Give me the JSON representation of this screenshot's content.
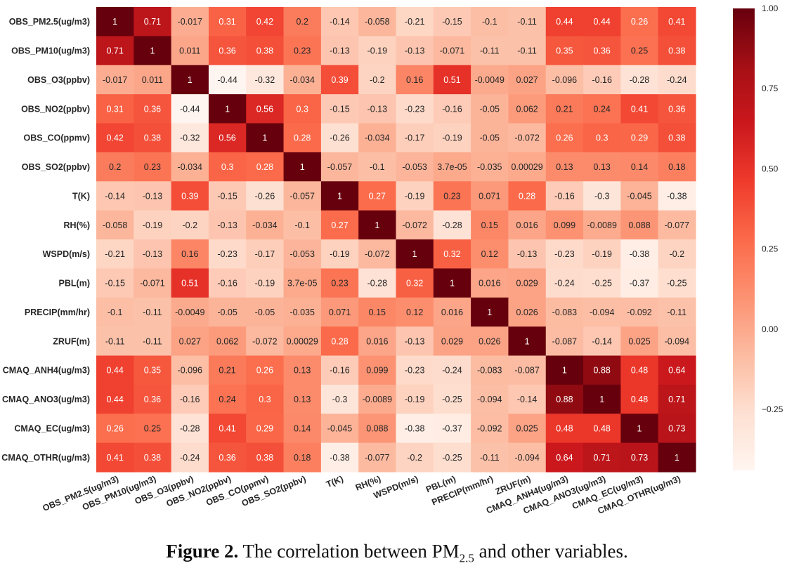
{
  "chart_data": {
    "type": "heatmap",
    "variables": [
      "OBS_PM2.5(ug/m3)",
      "OBS_PM10(ug/m3)",
      "OBS_O3(ppbv)",
      "OBS_NO2(ppbv)",
      "OBS_CO(ppmv)",
      "OBS_SO2(ppbv)",
      "T(K)",
      "RH(%)",
      "WSPD(m/s)",
      "PBL(m)",
      "PRECIP(mm/hr)",
      "ZRUF(m)",
      "CMAQ_ANH4(ug/m3)",
      "CMAQ_ANO3(ug/m3)",
      "CMAQ_EC(ug/m3)",
      "CMAQ_OTHR(ug/m3)"
    ],
    "cell_labels": [
      [
        "1",
        "0.71",
        "-0.017",
        "0.31",
        "0.42",
        "0.2",
        "-0.14",
        "-0.058",
        "-0.21",
        "-0.15",
        "-0.1",
        "-0.11",
        "0.44",
        "0.44",
        "0.26",
        "0.41"
      ],
      [
        "0.71",
        "1",
        "0.011",
        "0.36",
        "0.38",
        "0.23",
        "-0.13",
        "-0.19",
        "-0.13",
        "-0.071",
        "-0.11",
        "-0.11",
        "0.35",
        "0.36",
        "0.25",
        "0.38"
      ],
      [
        "-0.017",
        "0.011",
        "1",
        "-0.44",
        "-0.32",
        "-0.034",
        "0.39",
        "-0.2",
        "0.16",
        "0.51",
        "-0.0049",
        "0.027",
        "-0.096",
        "-0.16",
        "-0.28",
        "-0.24"
      ],
      [
        "0.31",
        "0.36",
        "-0.44",
        "1",
        "0.56",
        "0.3",
        "-0.15",
        "-0.13",
        "-0.23",
        "-0.16",
        "-0.05",
        "0.062",
        "0.21",
        "0.24",
        "0.41",
        "0.36"
      ],
      [
        "0.42",
        "0.38",
        "-0.32",
        "0.56",
        "1",
        "0.28",
        "-0.26",
        "-0.034",
        "-0.17",
        "-0.19",
        "-0.05",
        "-0.072",
        "0.26",
        "0.3",
        "0.29",
        "0.38"
      ],
      [
        "0.2",
        "0.23",
        "-0.034",
        "0.3",
        "0.28",
        "1",
        "-0.057",
        "-0.1",
        "-0.053",
        "3.7e-05",
        "-0.035",
        "0.00029",
        "0.13",
        "0.13",
        "0.14",
        "0.18"
      ],
      [
        "-0.14",
        "-0.13",
        "0.39",
        "-0.15",
        "-0.26",
        "-0.057",
        "1",
        "0.27",
        "-0.19",
        "0.23",
        "0.071",
        "0.28",
        "-0.16",
        "-0.3",
        "-0.045",
        "-0.38"
      ],
      [
        "-0.058",
        "-0.19",
        "-0.2",
        "-0.13",
        "-0.034",
        "-0.1",
        "0.27",
        "1",
        "-0.072",
        "-0.28",
        "0.15",
        "0.016",
        "0.099",
        "-0.0089",
        "0.088",
        "-0.077"
      ],
      [
        "-0.21",
        "-0.13",
        "0.16",
        "-0.23",
        "-0.17",
        "-0.053",
        "-0.19",
        "-0.072",
        "1",
        "0.32",
        "0.12",
        "-0.13",
        "-0.23",
        "-0.19",
        "-0.38",
        "-0.2"
      ],
      [
        "-0.15",
        "-0.071",
        "0.51",
        "-0.16",
        "-0.19",
        "3.7e-05",
        "0.23",
        "-0.28",
        "0.32",
        "1",
        "0.016",
        "0.029",
        "-0.24",
        "-0.25",
        "-0.37",
        "-0.25"
      ],
      [
        "-0.1",
        "-0.11",
        "-0.0049",
        "-0.05",
        "-0.05",
        "-0.035",
        "0.071",
        "0.15",
        "0.12",
        "0.016",
        "1",
        "0.026",
        "-0.083",
        "-0.094",
        "-0.092",
        "-0.11"
      ],
      [
        "-0.11",
        "-0.11",
        "0.027",
        "0.062",
        "-0.072",
        "0.00029",
        "0.28",
        "0.016",
        "-0.13",
        "0.029",
        "0.026",
        "1",
        "-0.087",
        "-0.14",
        "0.025",
        "-0.094"
      ],
      [
        "0.44",
        "0.35",
        "-0.096",
        "0.21",
        "0.26",
        "0.13",
        "-0.16",
        "0.099",
        "-0.23",
        "-0.24",
        "-0.083",
        "-0.087",
        "1",
        "0.88",
        "0.48",
        "0.64"
      ],
      [
        "0.44",
        "0.36",
        "-0.16",
        "0.24",
        "0.3",
        "0.13",
        "-0.3",
        "-0.0089",
        "-0.19",
        "-0.25",
        "-0.094",
        "-0.14",
        "0.88",
        "1",
        "0.48",
        "0.71"
      ],
      [
        "0.26",
        "0.25",
        "-0.28",
        "0.41",
        "0.29",
        "0.14",
        "-0.045",
        "0.088",
        "-0.38",
        "-0.37",
        "-0.092",
        "0.025",
        "0.48",
        "0.48",
        "1",
        "0.73"
      ],
      [
        "0.41",
        "0.38",
        "-0.24",
        "0.36",
        "0.38",
        "0.18",
        "-0.38",
        "-0.077",
        "-0.2",
        "-0.25",
        "-0.11",
        "-0.094",
        "0.64",
        "0.71",
        "0.73",
        "1"
      ]
    ],
    "colorbar": {
      "colormap": "Reds",
      "vmin": -0.44,
      "vmax": 1.0,
      "ticks": [
        1.0,
        0.75,
        0.5,
        0.25,
        0.0,
        -0.25
      ],
      "tick_labels": [
        "1.00",
        "0.75",
        "0.50",
        "0.25",
        "0.00",
        "−0.25"
      ]
    },
    "colors": {
      "reds_scale": [
        "#fff5f0",
        "#fee0d2",
        "#fcbba1",
        "#fc9272",
        "#fb6a4a",
        "#ef3b2c",
        "#cb181d",
        "#a50f15",
        "#67000d"
      ],
      "dark_text": "#262626",
      "light_text": "#ffffff"
    }
  },
  "caption": {
    "label": "Figure 2.",
    "text_before_sub": " The correlation between PM",
    "subscript": "2.5",
    "text_after_sub": " and other variables."
  }
}
